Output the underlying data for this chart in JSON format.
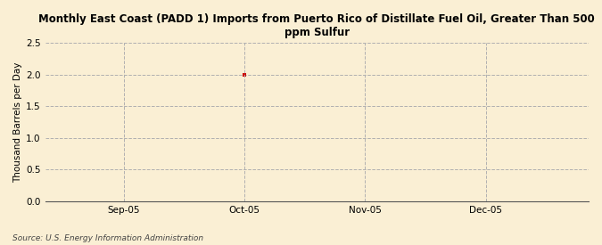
{
  "title_line1": "Monthly East Coast (PADD 1) Imports from Puerto Rico of Distillate Fuel Oil, Greater Than 500",
  "title_line2": "ppm Sulfur",
  "ylabel": "Thousand Barrels per Day",
  "source": "Source: U.S. Energy Information Administration",
  "background_color": "#faefd4",
  "plot_background_color": "#faefd4",
  "data_x_pos": 2,
  "data_y": [
    2.0
  ],
  "data_color": "#cc0000",
  "x_tick_labels": [
    "Sep-05",
    "Oct-05",
    "Nov-05",
    "Dec-05"
  ],
  "x_tick_positions": [
    1,
    2,
    3,
    4
  ],
  "x_lim": [
    0.35,
    4.85
  ],
  "y_lim": [
    0,
    2.5
  ],
  "y_ticks": [
    0.0,
    0.5,
    1.0,
    1.5,
    2.0,
    2.5
  ],
  "grid_color": "#b0b0b0",
  "title_fontsize": 8.5,
  "ylabel_fontsize": 7.5,
  "tick_fontsize": 7.5,
  "source_fontsize": 6.5
}
